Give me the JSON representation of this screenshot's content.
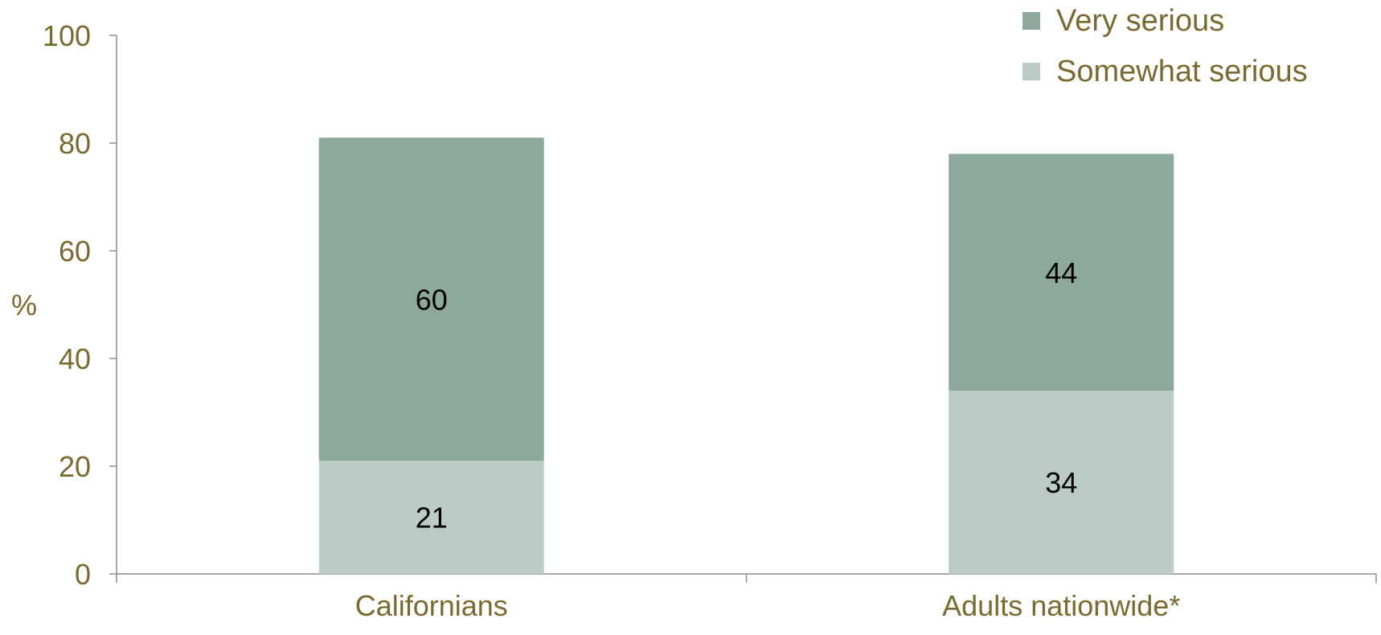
{
  "colors": {
    "axis_text": "#7A6A2E",
    "axis_line": "#8C8C8C",
    "very_serious": "#8DA99C",
    "somewhat_serious": "#BCCBC4",
    "data_label": "#000000"
  },
  "chart_data": {
    "type": "bar",
    "stacked": true,
    "categories": [
      "Californians",
      "Adults nationwide*"
    ],
    "series": [
      {
        "name": "Somewhat serious",
        "values": [
          21,
          34
        ]
      },
      {
        "name": "Very serious",
        "values": [
          60,
          44
        ]
      }
    ],
    "ylabel": "%",
    "ylim": [
      0,
      100
    ],
    "yticks": [
      0,
      20,
      40,
      60,
      80,
      100
    ],
    "legend_position": "top-right",
    "grid": false
  }
}
